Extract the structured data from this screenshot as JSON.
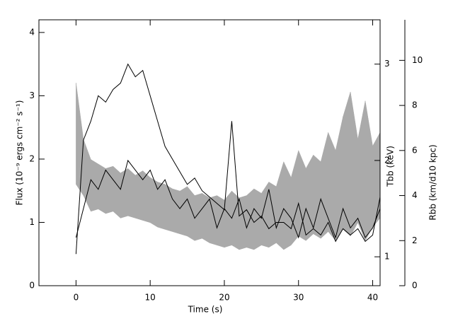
{
  "chart_data": {
    "type": "line",
    "xlabel": "Time (s)",
    "ylabel": "Flux (10⁻⁹ ergs cm⁻² s⁻¹)",
    "y2label": "Rbb (km/d10 kpc)",
    "y3label": "Tbb (keV)",
    "x": [
      0,
      1,
      2,
      3,
      4,
      5,
      6,
      7,
      8,
      9,
      10,
      11,
      12,
      13,
      14,
      15,
      16,
      17,
      18,
      19,
      20,
      21,
      22,
      23,
      24,
      25,
      26,
      27,
      28,
      29,
      30,
      31,
      32,
      33,
      34,
      35,
      36,
      37,
      38,
      39,
      40,
      41
    ],
    "xlim": [
      -5,
      41
    ],
    "xticks": [
      0,
      10,
      20,
      30,
      40
    ],
    "ylim": [
      0,
      4.2
    ],
    "yticks": [
      0,
      1,
      2,
      3,
      4
    ],
    "y2lim": [
      0,
      11.8
    ],
    "y2ticks": [
      0,
      2,
      4,
      6,
      8,
      10
    ],
    "y3lim": [
      0.7,
      3.46
    ],
    "y3ticks": [
      1,
      2,
      3
    ],
    "series": [
      {
        "color": "#000000",
        "axis": "y",
        "values": [
          0.5,
          2.3,
          2.6,
          3.0,
          2.9,
          3.1,
          3.2,
          3.5,
          3.3,
          3.4,
          3.0,
          2.6,
          2.2,
          2.0,
          1.8,
          1.6,
          1.7,
          1.5,
          1.4,
          1.3,
          1.2,
          2.6,
          1.1,
          1.2,
          1.0,
          1.1,
          0.9,
          1.0,
          1.0,
          0.9,
          1.3,
          0.8,
          0.9,
          0.8,
          1.0,
          0.7,
          0.9,
          0.8,
          0.9,
          0.7,
          0.8,
          1.4
        ]
      },
      {
        "color": "#000000",
        "axis": "y3",
        "values": [
          1.2,
          1.5,
          1.8,
          1.7,
          1.9,
          1.8,
          1.7,
          2.0,
          1.9,
          1.8,
          1.9,
          1.7,
          1.8,
          1.6,
          1.5,
          1.6,
          1.4,
          1.5,
          1.6,
          1.3,
          1.5,
          1.4,
          1.6,
          1.3,
          1.5,
          1.4,
          1.7,
          1.3,
          1.5,
          1.4,
          1.2,
          1.5,
          1.3,
          1.6,
          1.4,
          1.2,
          1.5,
          1.3,
          1.4,
          1.2,
          1.3,
          1.5
        ]
      },
      {
        "color": "#aaaaaa",
        "axis": "y2",
        "values": [
          4.5,
          4.0,
          3.3,
          3.4,
          3.2,
          3.3,
          3.0,
          3.1,
          3.0,
          2.9,
          2.8,
          2.6,
          2.5,
          2.4,
          2.3,
          2.2,
          2.0,
          2.1,
          1.9,
          1.8,
          1.7,
          1.8,
          1.6,
          1.7,
          1.6,
          1.8,
          1.7,
          1.9,
          1.6,
          1.8,
          2.2,
          2.0,
          2.3,
          2.1,
          2.4,
          2.0,
          2.5,
          2.2,
          2.8,
          2.0,
          2.6,
          3.0
        ]
      },
      {
        "color": "#aaaaaa",
        "axis": "y2",
        "values": [
          9.0,
          6.5,
          5.6,
          5.4,
          5.2,
          5.3,
          5.0,
          5.2,
          4.9,
          5.1,
          4.8,
          4.6,
          4.5,
          4.3,
          4.2,
          4.4,
          4.0,
          4.1,
          3.9,
          4.0,
          3.8,
          4.2,
          3.9,
          4.0,
          4.3,
          4.1,
          4.6,
          4.4,
          5.5,
          4.8,
          6.0,
          5.2,
          5.8,
          5.5,
          6.8,
          6.0,
          7.5,
          8.6,
          6.5,
          8.2,
          6.2,
          6.8
        ]
      }
    ]
  }
}
